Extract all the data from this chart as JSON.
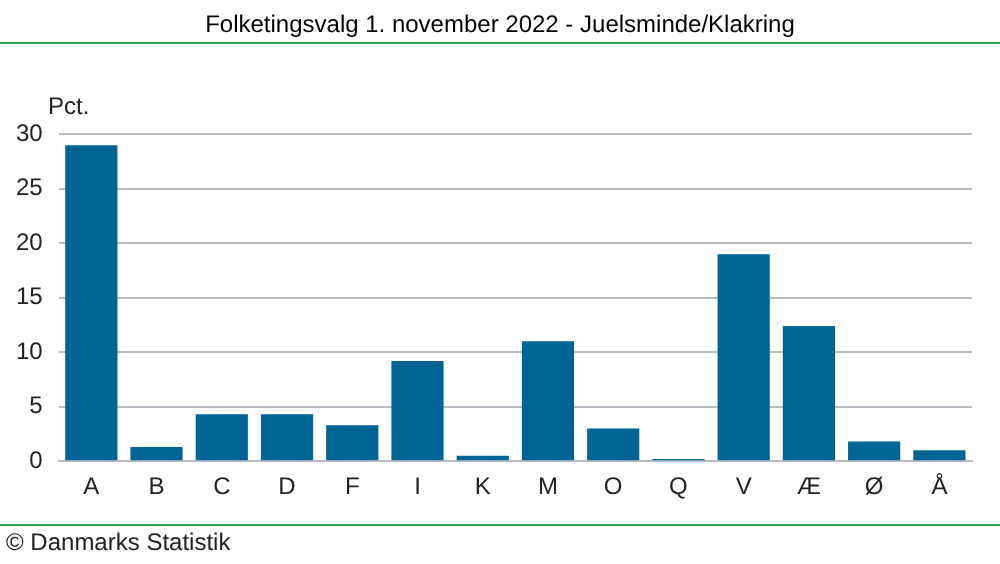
{
  "chart_data": {
    "type": "bar",
    "title": "Folketingsvalg 1. november 2022 - Juelsminde/Klakring",
    "ylabel": "Pct.",
    "categories": [
      "A",
      "B",
      "C",
      "D",
      "F",
      "I",
      "K",
      "M",
      "O",
      "Q",
      "V",
      "Æ",
      "Ø",
      "Å"
    ],
    "values": [
      29.0,
      1.3,
      4.3,
      4.3,
      3.3,
      9.2,
      0.5,
      11.0,
      3.0,
      0.2,
      19.0,
      12.4,
      1.8,
      1.0
    ],
    "color": "#006495",
    "ylim": [
      0,
      30
    ],
    "yticks": [
      0,
      5,
      10,
      15,
      20,
      25,
      30
    ],
    "grid": "y",
    "annotations": [
      "© Danmarks Statistik"
    ]
  }
}
